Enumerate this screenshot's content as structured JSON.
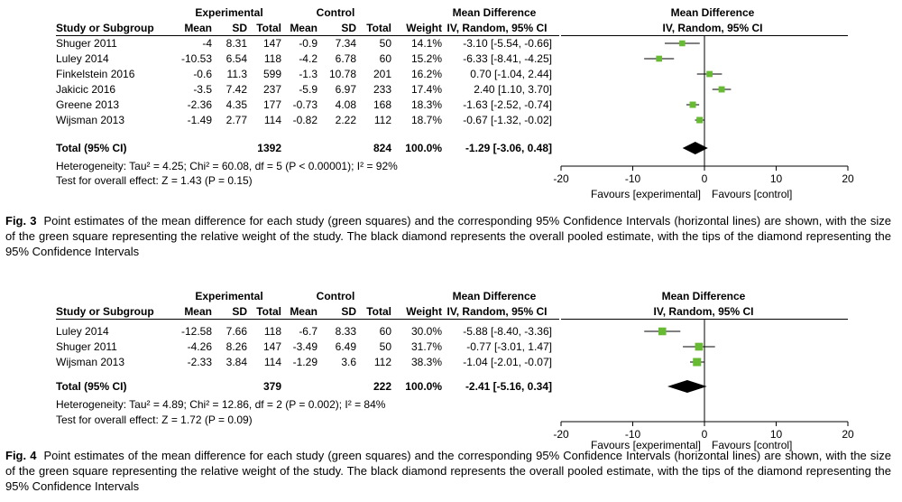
{
  "figures": [
    {
      "header": {
        "group_experimental": "Experimental",
        "group_control": "Control",
        "col_study": "Study or Subgroup",
        "col_mean": "Mean",
        "col_sd": "SD",
        "col_total": "Total",
        "col_weight": "Weight",
        "col_md": "Mean Difference",
        "col_md_sub": "IV, Random, 95% CI",
        "plot_title": "Mean Difference",
        "plot_sub": "IV, Random, 95% CI"
      },
      "studies": [
        {
          "name": "Shuger 2011",
          "e_mean": "-4",
          "e_sd": "8.31",
          "e_total": "147",
          "c_mean": "-0.9",
          "c_sd": "7.34",
          "c_total": "50",
          "weight": "14.1%",
          "ci_text": "-3.10 [-5.54, -0.66]"
        },
        {
          "name": "Luley 2014",
          "e_mean": "-10.53",
          "e_sd": "6.54",
          "e_total": "118",
          "c_mean": "-4.2",
          "c_sd": "6.78",
          "c_total": "60",
          "weight": "15.2%",
          "ci_text": "-6.33 [-8.41, -4.25]"
        },
        {
          "name": "Finkelstein 2016",
          "e_mean": "-0.6",
          "e_sd": "11.3",
          "e_total": "599",
          "c_mean": "-1.3",
          "c_sd": "10.78",
          "c_total": "201",
          "weight": "16.2%",
          "ci_text": "0.70 [-1.04, 2.44]"
        },
        {
          "name": "Jakicic 2016",
          "e_mean": "-3.5",
          "e_sd": "7.42",
          "e_total": "237",
          "c_mean": "-5.9",
          "c_sd": "6.97",
          "c_total": "233",
          "weight": "17.4%",
          "ci_text": "2.40 [1.10, 3.70]"
        },
        {
          "name": "Greene 2013",
          "e_mean": "-2.36",
          "e_sd": "4.35",
          "e_total": "177",
          "c_mean": "-0.73",
          "c_sd": "4.08",
          "c_total": "168",
          "weight": "18.3%",
          "ci_text": "-1.63 [-2.52, -0.74]"
        },
        {
          "name": "Wijsman 2013",
          "e_mean": "-1.49",
          "e_sd": "2.77",
          "e_total": "114",
          "c_mean": "-0.82",
          "c_sd": "2.22",
          "c_total": "112",
          "weight": "18.7%",
          "ci_text": "-0.67 [-1.32, -0.02]"
        }
      ],
      "total": {
        "label": "Total (95% CI)",
        "e_total": "1392",
        "c_total": "824",
        "weight": "100.0%",
        "ci_text": "-1.29 [-3.06, 0.48]"
      },
      "heterogeneity": "Heterogeneity: Tau² = 4.25; Chi² = 60.08, df = 5 (P < 0.00001); I² = 92%",
      "overall_effect": "Test for overall effect: Z = 1.43 (P = 0.15)",
      "favours_left": "Favours [experimental]",
      "favours_right": "Favours [control]",
      "caption_label": "Fig. 3",
      "caption_text": "Point estimates of the mean difference for each study (green squares) and the corresponding 95% Confidence Intervals (horizontal lines) are shown, with the size of the green square representing the relative weight of the study. The black diamond represents the overall pooled estimate, with the tips of the diamond representing the 95% Confidence Intervals"
    },
    {
      "header": {
        "group_experimental": "Experimental",
        "group_control": "Control",
        "col_study": "Study or Subgroup",
        "col_mean": "Mean",
        "col_sd": "SD",
        "col_total": "Total",
        "col_weight": "Weight",
        "col_md": "Mean Difference",
        "col_md_sub": "IV, Random, 95% CI",
        "plot_title": "Mean Difference",
        "plot_sub": "IV, Random, 95% CI"
      },
      "studies": [
        {
          "name": "Luley 2014",
          "e_mean": "-12.58",
          "e_sd": "7.66",
          "e_total": "118",
          "c_mean": "-6.7",
          "c_sd": "8.33",
          "c_total": "60",
          "weight": "30.0%",
          "ci_text": "-5.88 [-8.40, -3.36]"
        },
        {
          "name": "Shuger 2011",
          "e_mean": "-4.26",
          "e_sd": "8.26",
          "e_total": "147",
          "c_mean": "-3.49",
          "c_sd": "6.49",
          "c_total": "50",
          "weight": "31.7%",
          "ci_text": "-0.77 [-3.01, 1.47]"
        },
        {
          "name": "Wijsman 2013",
          "e_mean": "-2.33",
          "e_sd": "3.84",
          "e_total": "114",
          "c_mean": "-1.29",
          "c_sd": "3.6",
          "c_total": "112",
          "weight": "38.3%",
          "ci_text": "-1.04 [-2.01, -0.07]"
        }
      ],
      "total": {
        "label": "Total (95% CI)",
        "e_total": "379",
        "c_total": "222",
        "weight": "100.0%",
        "ci_text": "-2.41 [-5.16, 0.34]"
      },
      "heterogeneity": "Heterogeneity: Tau² = 4.89; Chi² = 12.86, df = 2 (P = 0.002); I² = 84%",
      "overall_effect": "Test for overall effect: Z = 1.72 (P = 0.09)",
      "favours_left": "Favours [experimental]",
      "favours_right": "Favours [control]",
      "caption_label": "Fig. 4",
      "caption_text": "Point estimates of the mean difference for each study (green squares) and the corresponding 95% Confidence Intervals (horizontal lines) are shown, with the size of the green square representing the relative weight of the study. The black diamond represents the overall pooled estimate, with the tips of the diamond representing the 95% Confidence Intervals"
    }
  ],
  "chart_data": [
    {
      "type": "scatter",
      "x_range": [
        -20,
        20
      ],
      "x_ticks": [
        -20,
        -10,
        0,
        10,
        20
      ],
      "points": [
        {
          "mean": -3.1,
          "lo": -5.54,
          "hi": -0.66,
          "weight": 14.1
        },
        {
          "mean": -6.33,
          "lo": -8.41,
          "hi": -4.25,
          "weight": 15.2
        },
        {
          "mean": 0.7,
          "lo": -1.04,
          "hi": 2.44,
          "weight": 16.2
        },
        {
          "mean": 2.4,
          "lo": 1.1,
          "hi": 3.7,
          "weight": 17.4
        },
        {
          "mean": -1.63,
          "lo": -2.52,
          "hi": -0.74,
          "weight": 18.3
        },
        {
          "mean": -0.67,
          "lo": -1.32,
          "hi": -0.02,
          "weight": 18.7
        }
      ],
      "pooled": {
        "mean": -1.29,
        "lo": -3.06,
        "hi": 0.48
      },
      "marker_color": "#66bb33",
      "diamond_color": "#000000"
    },
    {
      "type": "scatter",
      "x_range": [
        -20,
        20
      ],
      "x_ticks": [
        -20,
        -10,
        0,
        10,
        20
      ],
      "points": [
        {
          "mean": -5.88,
          "lo": -8.4,
          "hi": -3.36,
          "weight": 30.0
        },
        {
          "mean": -0.77,
          "lo": -3.01,
          "hi": 1.47,
          "weight": 31.7
        },
        {
          "mean": -1.04,
          "lo": -2.01,
          "hi": -0.07,
          "weight": 38.3
        }
      ],
      "pooled": {
        "mean": -2.41,
        "lo": -5.16,
        "hi": 0.34
      },
      "marker_color": "#66bb33",
      "diamond_color": "#000000"
    }
  ]
}
